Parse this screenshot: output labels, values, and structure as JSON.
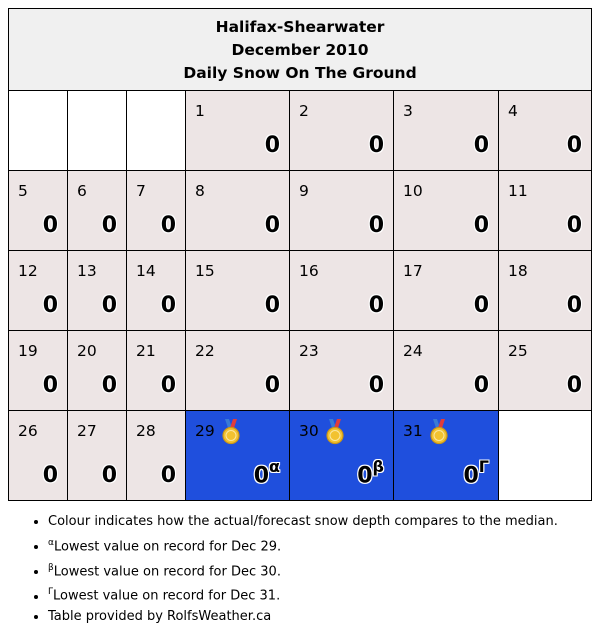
{
  "header": {
    "station": "Halifax-Shearwater",
    "month": "December 2010",
    "title": "Daily Snow On The Ground"
  },
  "colors": {
    "normal": "#ede5e5",
    "record_low": "#1f4fdd",
    "empty": "#ffffff",
    "header_bg": "#f0f0f0"
  },
  "weeks": [
    [
      null,
      null,
      null,
      {
        "day": "1",
        "value": "0"
      },
      {
        "day": "2",
        "value": "0"
      },
      {
        "day": "3",
        "value": "0"
      },
      {
        "day": "4",
        "value": "0"
      }
    ],
    [
      {
        "day": "5",
        "value": "0"
      },
      {
        "day": "6",
        "value": "0"
      },
      {
        "day": "7",
        "value": "0"
      },
      {
        "day": "8",
        "value": "0"
      },
      {
        "day": "9",
        "value": "0"
      },
      {
        "day": "10",
        "value": "0"
      },
      {
        "day": "11",
        "value": "0"
      }
    ],
    [
      {
        "day": "12",
        "value": "0"
      },
      {
        "day": "13",
        "value": "0"
      },
      {
        "day": "14",
        "value": "0"
      },
      {
        "day": "15",
        "value": "0"
      },
      {
        "day": "16",
        "value": "0"
      },
      {
        "day": "17",
        "value": "0"
      },
      {
        "day": "18",
        "value": "0"
      }
    ],
    [
      {
        "day": "19",
        "value": "0"
      },
      {
        "day": "20",
        "value": "0"
      },
      {
        "day": "21",
        "value": "0"
      },
      {
        "day": "22",
        "value": "0"
      },
      {
        "day": "23",
        "value": "0"
      },
      {
        "day": "24",
        "value": "0"
      },
      {
        "day": "25",
        "value": "0"
      }
    ],
    [
      {
        "day": "26",
        "value": "0"
      },
      {
        "day": "27",
        "value": "0"
      },
      {
        "day": "28",
        "value": "0"
      },
      {
        "day": "29",
        "value": "0",
        "mark": "α",
        "record": true,
        "icon": "medal-icon"
      },
      {
        "day": "30",
        "value": "0",
        "mark": "β",
        "record": true,
        "icon": "medal-icon"
      },
      {
        "day": "31",
        "value": "0",
        "mark": "Γ",
        "record": true,
        "icon": "medal-icon"
      },
      null
    ]
  ],
  "notes": {
    "colour": "Colour indicates how the actual/forecast snow depth compares to the median.",
    "alpha_mark": "α",
    "alpha_text": "Lowest value on record for Dec 29.",
    "beta_mark": "β",
    "beta_text": "Lowest value on record for Dec 30.",
    "gamma_mark": "Γ",
    "gamma_text": "Lowest value on record for Dec 31.",
    "credit": "Table provided by RolfsWeather.ca"
  }
}
